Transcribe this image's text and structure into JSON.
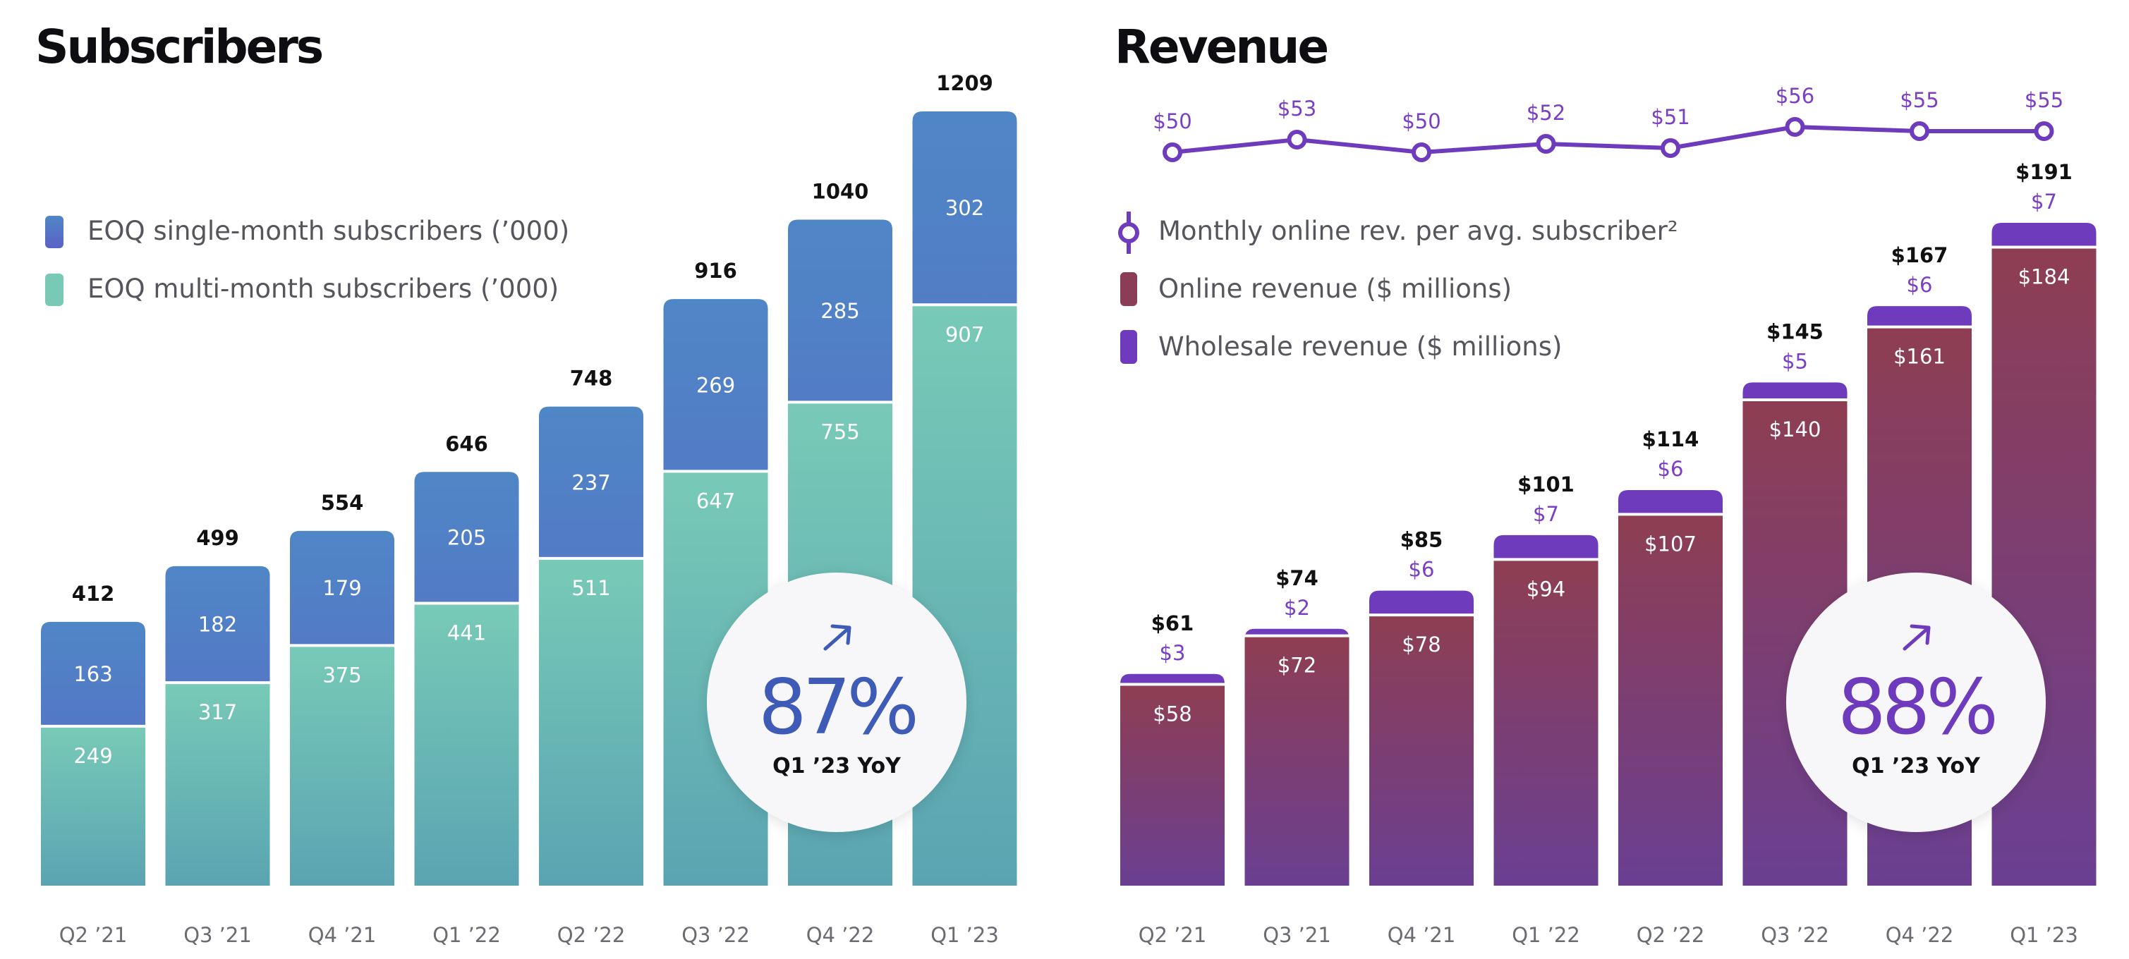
{
  "chart_data": [
    {
      "type": "bar",
      "title": "Subscribers",
      "stacked": true,
      "categories": [
        "Q2 ’21",
        "Q3 ’21",
        "Q4 ’21",
        "Q1 ’22",
        "Q2 ’22",
        "Q3 ’22",
        "Q4 ’22",
        "Q1 ’23"
      ],
      "series": [
        {
          "name": "EOQ multi-month subscribers  (’000)",
          "values": [
            249,
            317,
            375,
            441,
            511,
            647,
            755,
            907
          ],
          "color": "#6fc3b4"
        },
        {
          "name": "EOQ single-month subscribers (’000)",
          "values": [
            163,
            182,
            179,
            205,
            237,
            269,
            285,
            302
          ],
          "color": "#4f74c8"
        }
      ],
      "totals": [
        412,
        499,
        554,
        646,
        748,
        916,
        1040,
        1209
      ],
      "legend": "top-left",
      "grid": false,
      "ylim": [
        0,
        1209
      ],
      "badge": {
        "value": "87%",
        "label": "Q1 ’23 YoY",
        "arrow": "up-right-arrow-icon",
        "color": "#3e5bb8"
      }
    },
    {
      "type": "bar",
      "title": "Revenue",
      "stacked": true,
      "categories": [
        "Q2 ’21",
        "Q3 ’21",
        "Q4 ’21",
        "Q1 ’22",
        "Q2 ’22",
        "Q3 ’22",
        "Q4 ’22",
        "Q1 ’23"
      ],
      "series": [
        {
          "name": "Online revenue ($ millions)",
          "values": [
            58,
            72,
            78,
            94,
            107,
            140,
            161,
            184
          ],
          "color": "#8a3d57",
          "labels": [
            "$58",
            "$72",
            "$78",
            "$94",
            "$107",
            "$140",
            "$161",
            "$184"
          ]
        },
        {
          "name": "Wholesale revenue ($ millions)",
          "values": [
            3,
            2,
            6,
            7,
            6,
            5,
            6,
            7
          ],
          "color": "#6f3bbd",
          "labels": [
            "$3",
            "$2",
            "$6",
            "$7",
            "$6",
            "$5",
            "$6",
            "$7"
          ]
        }
      ],
      "totals": [
        "$61",
        "$74",
        "$85",
        "$101",
        "$114",
        "$145",
        "$167",
        "$191"
      ],
      "total_values": [
        61,
        74,
        85,
        101,
        114,
        145,
        167,
        191
      ],
      "line_series": {
        "name": "Monthly online rev. per avg. subscriber²",
        "values": [
          50,
          53,
          50,
          52,
          51,
          56,
          55,
          55
        ],
        "labels": [
          "$50",
          "$53",
          "$50",
          "$52",
          "$51",
          "$56",
          "$55",
          "$55"
        ],
        "color": "#6f3bbd"
      },
      "legend": "top-left",
      "grid": false,
      "ylim": [
        0,
        191
      ],
      "badge": {
        "value": "88%",
        "label": "Q1 ’23 YoY",
        "arrow": "up-right-arrow-icon",
        "color": "#6f3bbd"
      }
    }
  ]
}
